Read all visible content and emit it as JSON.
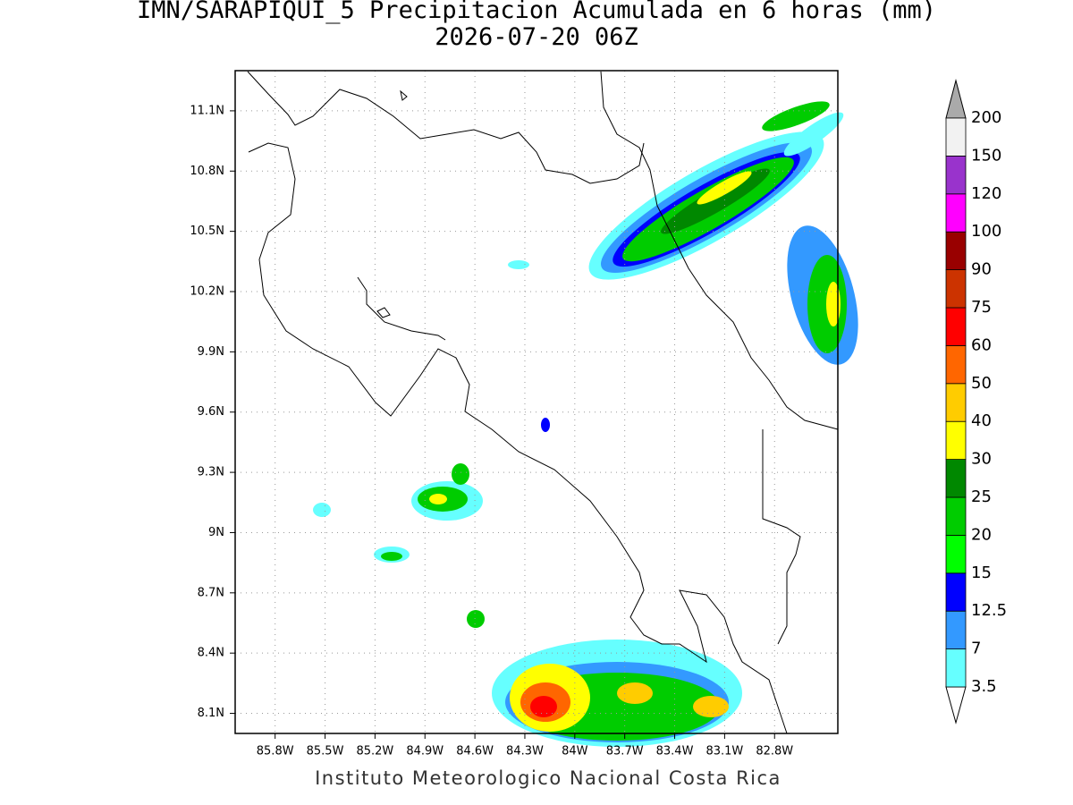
{
  "header": {
    "title": "IMN/SARAPIQUI_5 Precipitacion Acumulada en 6 horas (mm)",
    "subtitle": "2026-07-20 06Z"
  },
  "map": {
    "lon_range": [
      -86.04,
      -82.42
    ],
    "lat_range": [
      8.0,
      11.3
    ],
    "lon_ticks": [
      {
        "value": -85.8,
        "label": "85.8W"
      },
      {
        "value": -85.5,
        "label": "85.5W"
      },
      {
        "value": -85.2,
        "label": "85.2W"
      },
      {
        "value": -84.9,
        "label": "84.9W"
      },
      {
        "value": -84.6,
        "label": "84.6W"
      },
      {
        "value": -84.3,
        "label": "84.3W"
      },
      {
        "value": -84.0,
        "label": "84W"
      },
      {
        "value": -83.7,
        "label": "83.7W"
      },
      {
        "value": -83.4,
        "label": "83.4W"
      },
      {
        "value": -83.1,
        "label": "83.1W"
      },
      {
        "value": -82.8,
        "label": "82.8W"
      }
    ],
    "lat_ticks": [
      {
        "value": 11.1,
        "label": "11.1N"
      },
      {
        "value": 10.8,
        "label": "10.8N"
      },
      {
        "value": 10.5,
        "label": "10.5N"
      },
      {
        "value": 10.2,
        "label": "10.2N"
      },
      {
        "value": 9.9,
        "label": "9.9N"
      },
      {
        "value": 9.6,
        "label": "9.6N"
      },
      {
        "value": 9.3,
        "label": "9.3N"
      },
      {
        "value": 9.0,
        "label": "9N"
      },
      {
        "value": 8.7,
        "label": "8.7N"
      },
      {
        "value": 8.4,
        "label": "8.4N"
      },
      {
        "value": 8.1,
        "label": "8.1N"
      }
    ]
  },
  "colorbar": {
    "levels": [
      "3.5",
      "7",
      "12.5",
      "15",
      "20",
      "25",
      "30",
      "40",
      "50",
      "60",
      "75",
      "90",
      "100",
      "120",
      "150",
      "200"
    ],
    "colors": [
      "#66ffff",
      "#3399ff",
      "#0000ff",
      "#00ff00",
      "#00cc00",
      "#008800",
      "#ffff00",
      "#ffcc00",
      "#ff6600",
      "#ff0000",
      "#cc3300",
      "#990000",
      "#ff00ff",
      "#9933cc",
      "#f2f2f2"
    ],
    "under_color": "#ffffff",
    "over_color": "#aaaaaa"
  },
  "footer": "Instituto Meteorologico Nacional Costa Rica"
}
